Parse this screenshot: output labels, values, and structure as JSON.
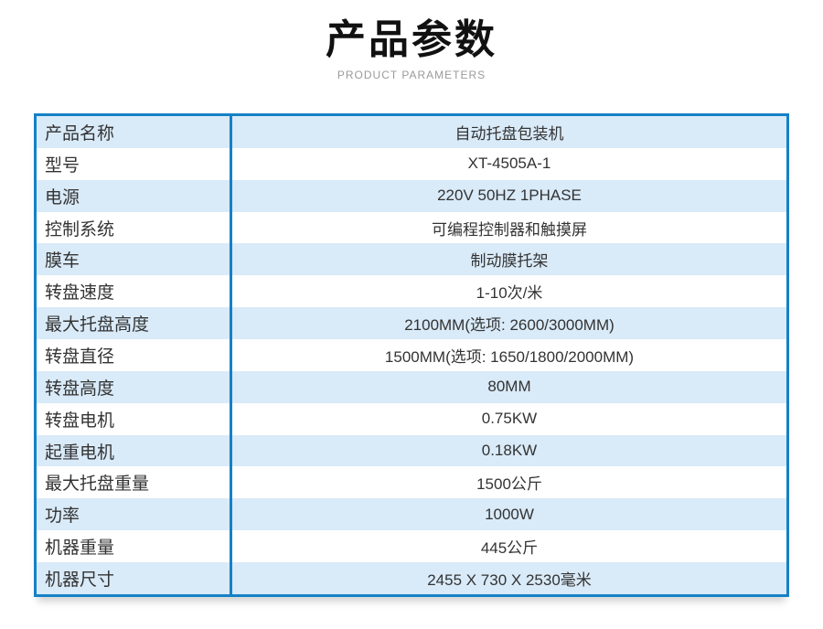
{
  "page": {
    "title": "产品参数",
    "subtitle": "PRODUCT PARAMETERS"
  },
  "colors": {
    "border_blue": "#1581c6",
    "row_alt_blue": "#d9eaf8",
    "row_white": "#ffffff",
    "text_dark": "#333333",
    "title_black": "#111111",
    "subtitle_gray": "#9a9a9a"
  },
  "table": {
    "rows": [
      {
        "label": "产品名称",
        "value": "自动托盘包装机"
      },
      {
        "label": "型号",
        "value": "XT-4505A-1"
      },
      {
        "label": "电源",
        "value": "220V 50HZ 1PHASE"
      },
      {
        "label": "控制系统",
        "value": "可编程控制器和触摸屏"
      },
      {
        "label": "膜车",
        "value": "制动膜托架"
      },
      {
        "label": "转盘速度",
        "value": "1-10次/米"
      },
      {
        "label": "最大托盘高度",
        "value": "2100MM(选项: 2600/3000MM)"
      },
      {
        "label": "转盘直径",
        "value": "1500MM(选项: 1650/1800/2000MM)"
      },
      {
        "label": "转盘高度",
        "value": "80MM"
      },
      {
        "label": "转盘电机",
        "value": "0.75KW"
      },
      {
        "label": "起重电机",
        "value": "0.18KW"
      },
      {
        "label": "最大托盘重量",
        "value": "1500公斤"
      },
      {
        "label": "功率",
        "value": "1000W"
      },
      {
        "label": "机器重量",
        "value": "445公斤"
      },
      {
        "label": "机器尺寸",
        "value": "2455 X 730 X 2530毫米"
      }
    ]
  }
}
